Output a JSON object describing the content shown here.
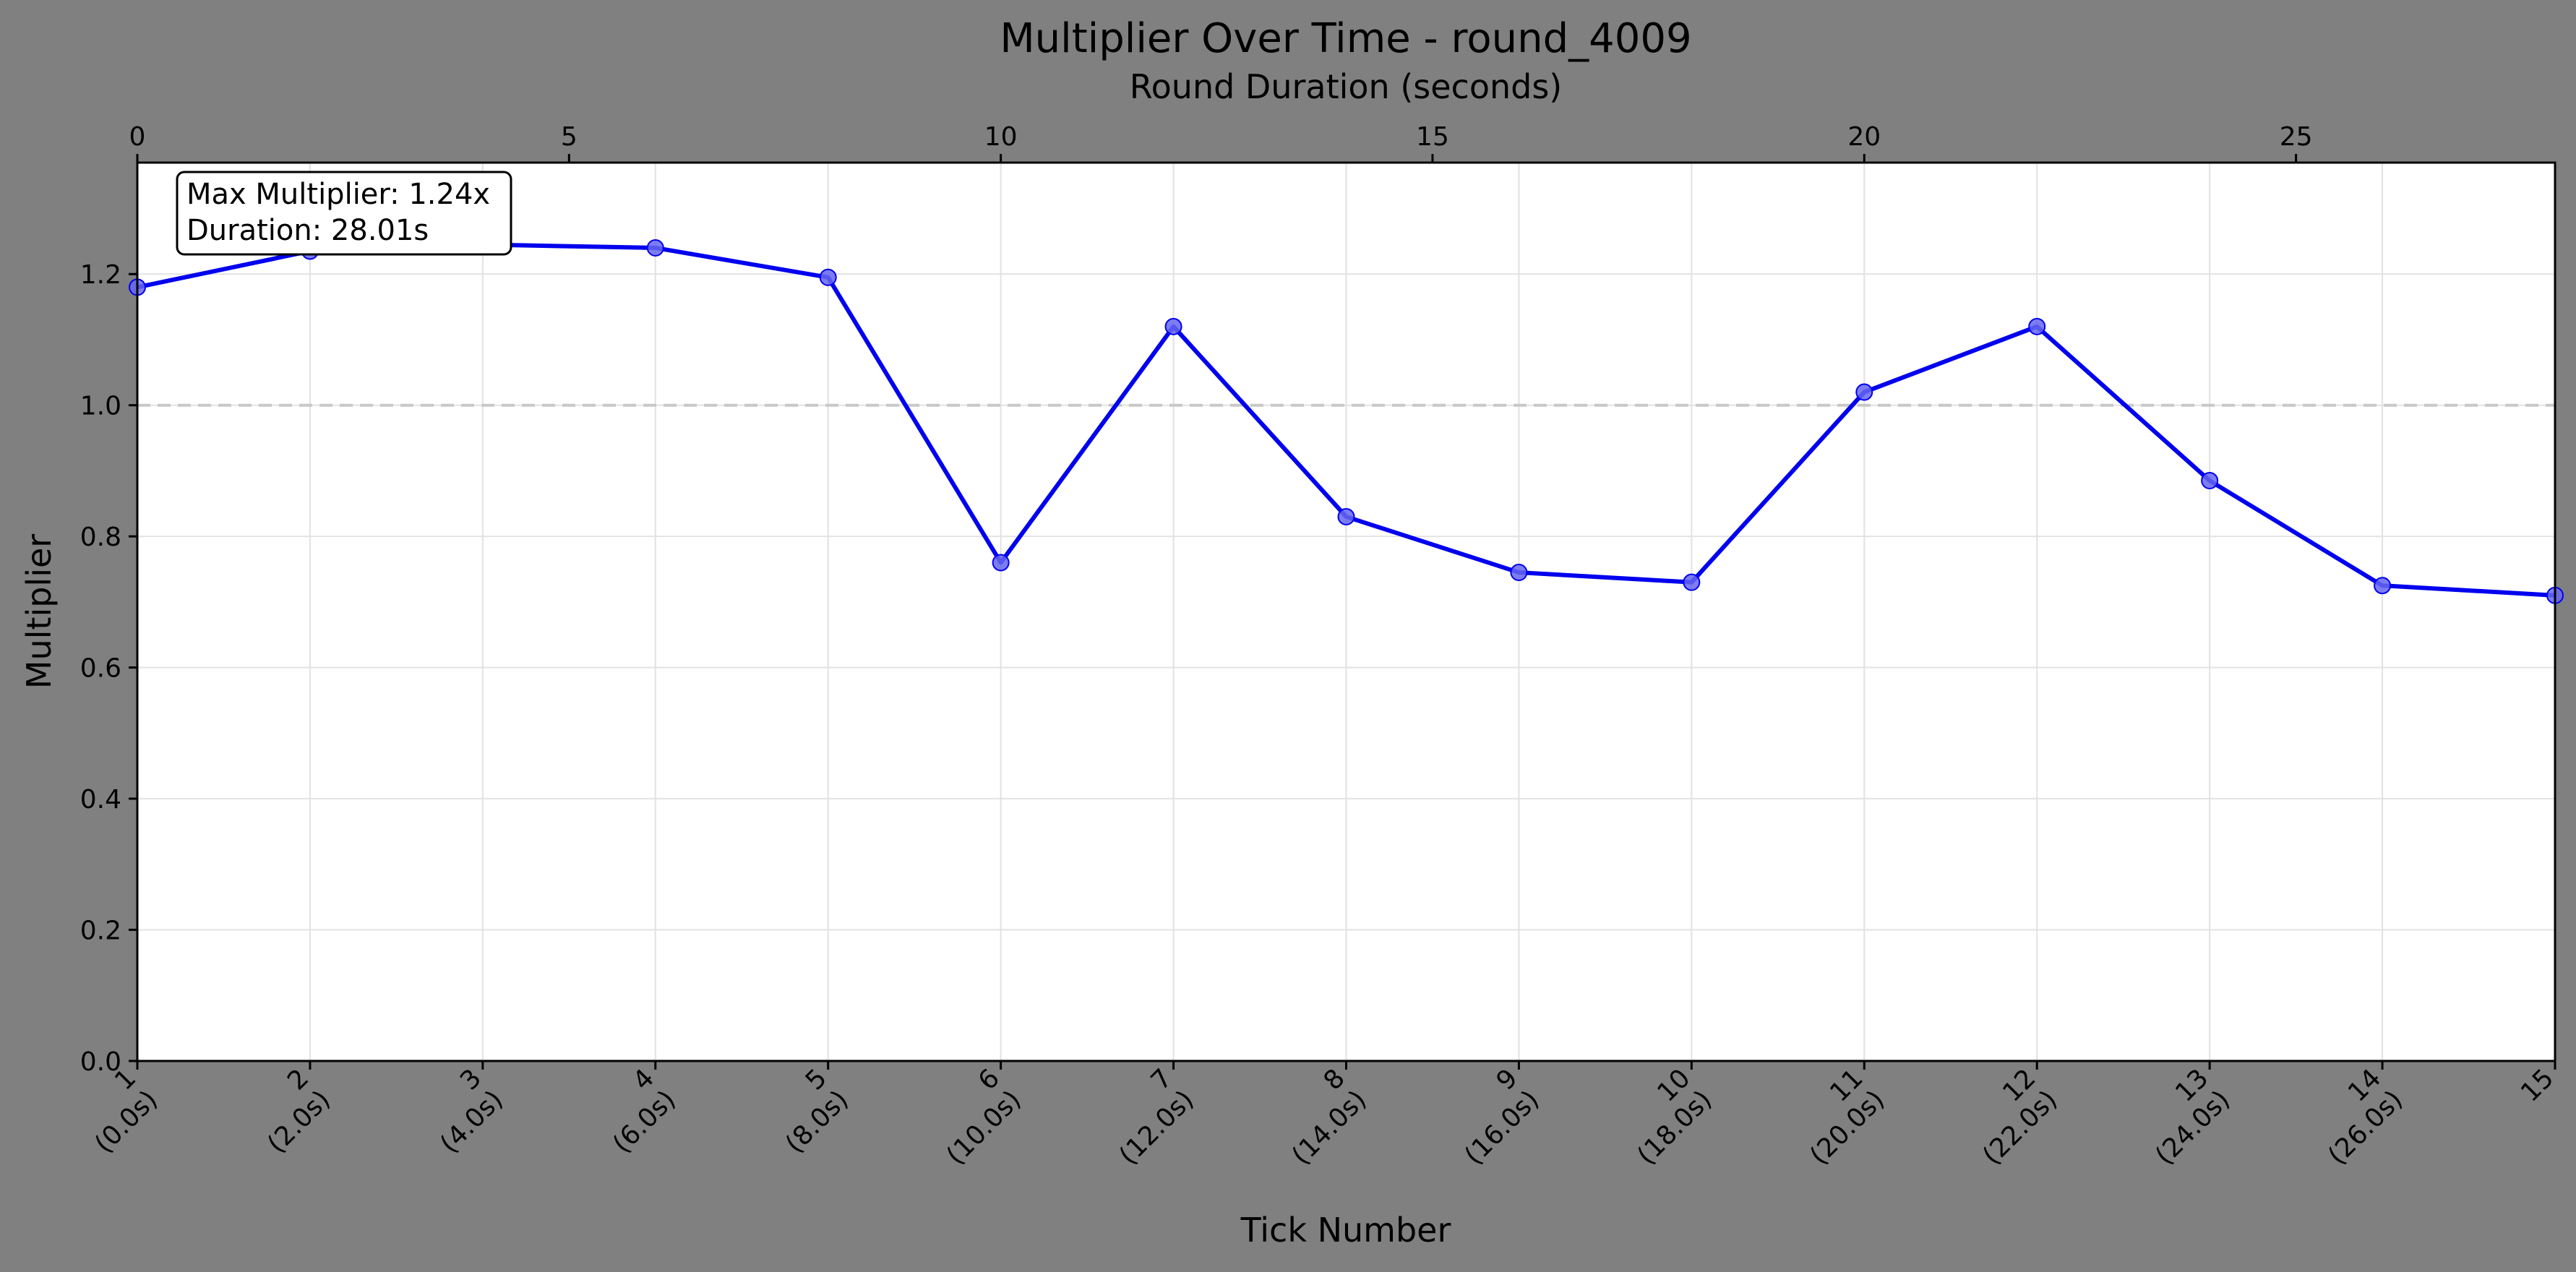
{
  "chart_data": {
    "type": "line",
    "title": "Multiplier Over Time - round_4009",
    "xlabel": "Tick Number",
    "ylabel": "Multiplier",
    "x2label": "Round Duration (seconds)",
    "ylim": [
      0,
      1.37
    ],
    "xlim": [
      0,
      28
    ],
    "yticks": [
      0.0,
      0.2,
      0.4,
      0.6,
      0.8,
      1.0,
      1.2
    ],
    "ytick_labels": [
      "0.0",
      "0.2",
      "0.4",
      "0.6",
      "0.8",
      "1.0",
      "1.2"
    ],
    "x2ticks": [
      0,
      5,
      10,
      15,
      20,
      25
    ],
    "x2tick_labels": [
      "0",
      "5",
      "10",
      "15",
      "20",
      "25"
    ],
    "reference_line": 1.0,
    "grid": true,
    "line_color": "#0000ee",
    "marker_color": "#6666f0",
    "points": [
      {
        "tick": "1",
        "time": "(0.0s)",
        "t": 0,
        "y": 1.18
      },
      {
        "tick": "2",
        "time": "(2.0s)",
        "t": 2,
        "y": 1.235
      },
      {
        "tick": "3",
        "time": "(4.0s)",
        "t": 4,
        "y": 1.245
      },
      {
        "tick": "4",
        "time": "(6.0s)",
        "t": 6,
        "y": 1.24
      },
      {
        "tick": "5",
        "time": "(8.0s)",
        "t": 8,
        "y": 1.195
      },
      {
        "tick": "6",
        "time": "(10.0s)",
        "t": 10,
        "y": 0.76
      },
      {
        "tick": "7",
        "time": "(12.0s)",
        "t": 12,
        "y": 1.12
      },
      {
        "tick": "8",
        "time": "(14.0s)",
        "t": 14,
        "y": 0.83
      },
      {
        "tick": "9",
        "time": "(16.0s)",
        "t": 16,
        "y": 0.745
      },
      {
        "tick": "10",
        "time": "(18.0s)",
        "t": 18,
        "y": 0.73
      },
      {
        "tick": "11",
        "time": "(20.0s)",
        "t": 20,
        "y": 1.02
      },
      {
        "tick": "12",
        "time": "(22.0s)",
        "t": 22,
        "y": 1.12
      },
      {
        "tick": "13",
        "time": "(24.0s)",
        "t": 24,
        "y": 0.885
      },
      {
        "tick": "14",
        "time": "(26.0s)",
        "t": 26,
        "y": 0.725
      },
      {
        "tick": "15",
        "time": "",
        "t": 28,
        "y": 0.71
      }
    ],
    "info_box": {
      "line1": "Max Multiplier: 1.24x",
      "line2": "Duration: 28.01s"
    }
  }
}
